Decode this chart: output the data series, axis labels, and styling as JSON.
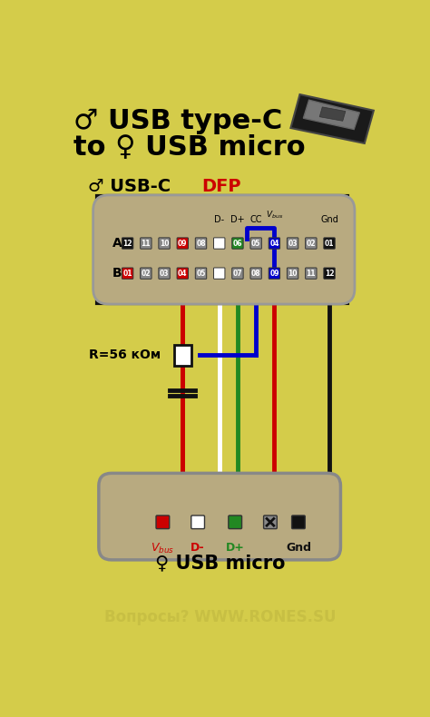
{
  "bg_color": "#d4cc4a",
  "title_line1": "♂ USB type-C",
  "title_line2": "to ♀ USB micro",
  "usbc_label": "♂ USB-C ",
  "usbc_dfp": "DFP",
  "usb_micro_label": "♀ USB micro",
  "watermark": "Вопросы? WWW.RONES.SU",
  "resistor_label": "R=56 кОм",
  "wire_red": "#cc0000",
  "wire_white": "#ffffff",
  "wire_green": "#228822",
  "wire_blue": "#0000cc",
  "wire_black": "#111111",
  "connector_fill": "#b8aa80",
  "pin_gray": "#888888",
  "pin_white_text": "#ffffff"
}
